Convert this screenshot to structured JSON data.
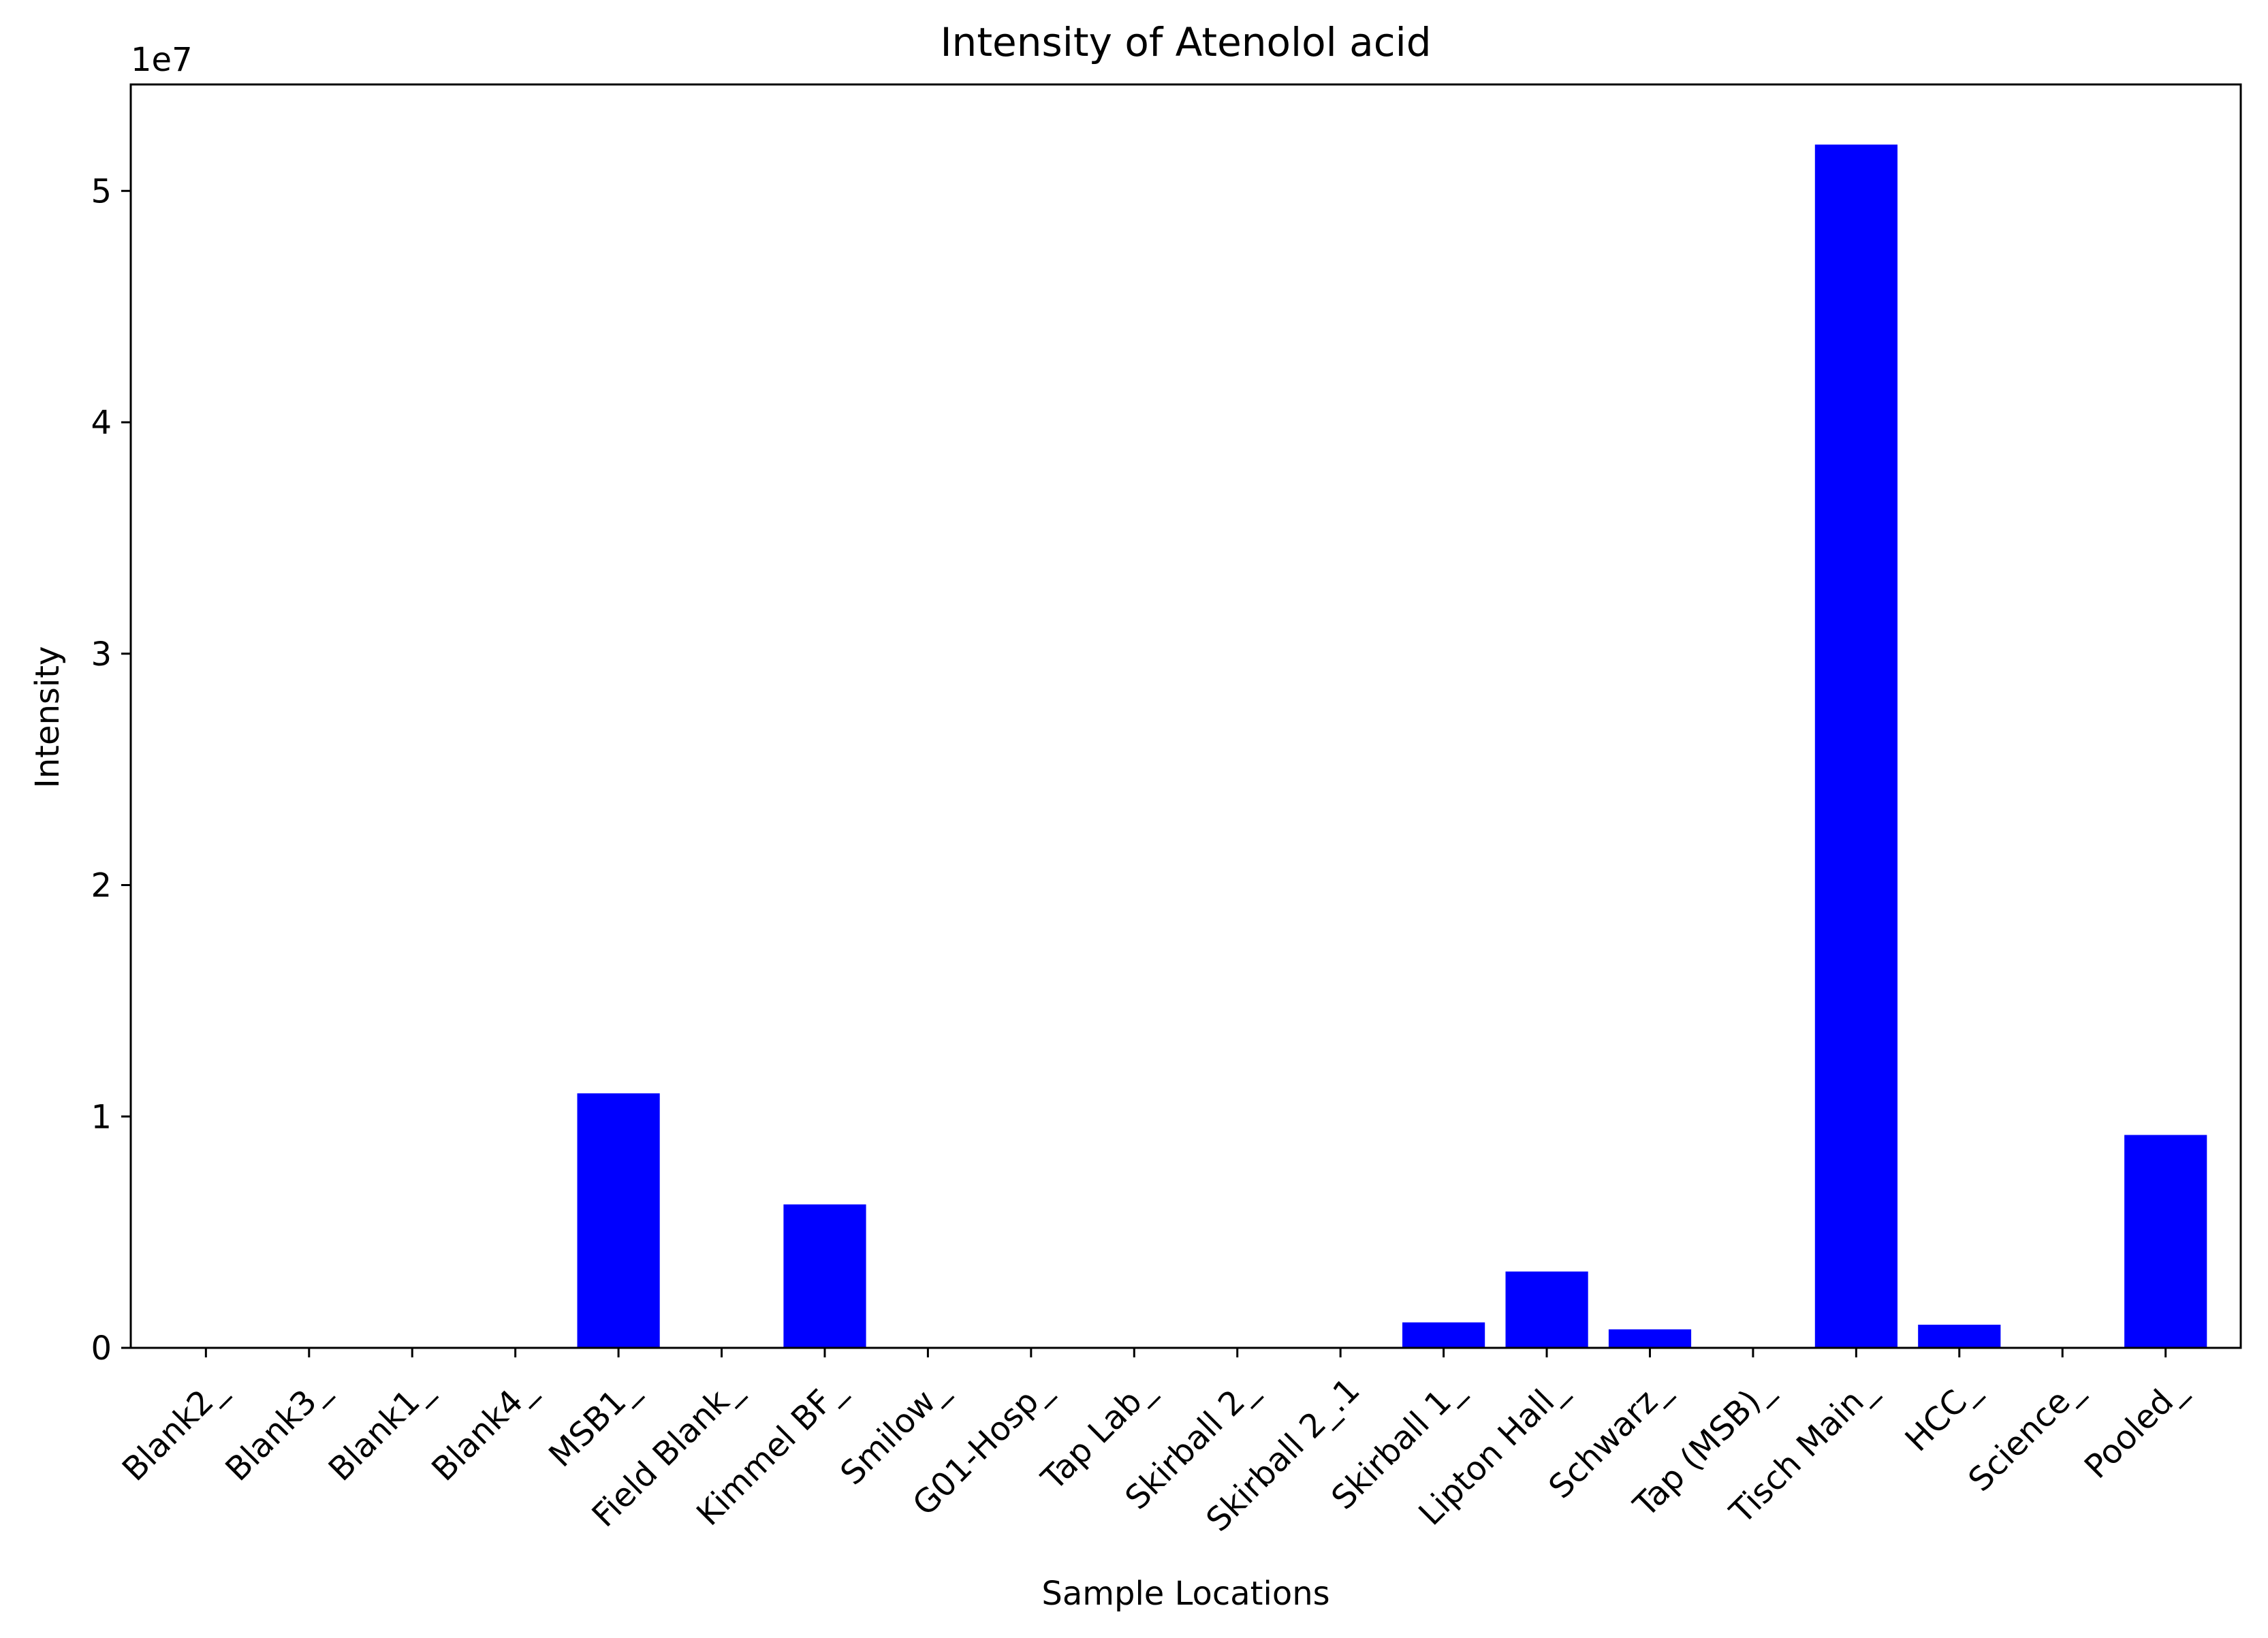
{
  "chart_data": {
    "type": "bar",
    "title": "Intensity of Atenolol acid",
    "xlabel": "Sample Locations",
    "ylabel": "Intensity",
    "y_scale_label": "1e7",
    "y_tick_labels": [
      "0",
      "1",
      "2",
      "3",
      "4",
      "5"
    ],
    "y_tick_values": [
      0,
      10000000,
      20000000,
      30000000,
      40000000,
      50000000
    ],
    "ylim": [
      0,
      54600000
    ],
    "bar_color": "#0000ff",
    "categories": [
      "Blank2_",
      "Blank3_",
      "Blank1_",
      "Blank4_",
      "MSB1_",
      "Field Blank_",
      "Kimmel BF_",
      "Smilow_",
      "G01-Hosp_",
      "Tap Lab_",
      "Skirball 2_",
      "Skirball 2_.1",
      "Skirball 1_",
      "Lipton Hall_",
      "Schwarz_",
      "Tap (MSB)_",
      "Tisch Main_",
      "HCC_",
      "Science_",
      "Pooled_"
    ],
    "values": [
      0,
      0,
      0,
      0,
      11000000,
      0,
      6200000,
      0,
      0,
      0,
      0,
      0,
      1100000,
      3300000,
      800000,
      0,
      52000000,
      1000000,
      0,
      9200000
    ],
    "grid": false,
    "legend": "none"
  }
}
